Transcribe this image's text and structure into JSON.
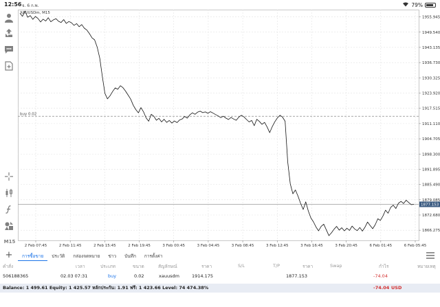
{
  "status": {
    "time": "12:56",
    "date": "จ. 6 ก.พ.",
    "battery": "79%",
    "battery_level": 0.79
  },
  "toolbar": {
    "items": [
      "person-icon",
      "trade-icon",
      "chat-icon",
      "new-doc-icon",
      "crosshair-icon",
      "candles-icon",
      "indicator-icon",
      "objects-icon"
    ],
    "timeframe": "M15"
  },
  "chart": {
    "symbol": "XAUUSDm, M15",
    "buy_label": "buy 0.02",
    "buy_level": 1914.175,
    "current_price": "1877.153",
    "current_level": 1877.153,
    "ylim": [
      1862.0,
      1959.0
    ],
    "price_ticks": [
      "1955.945",
      "1949.540",
      "1943.135",
      "1936.730",
      "1930.325",
      "1923.920",
      "1917.515",
      "1911.110",
      "1904.705",
      "1898.300",
      "1891.895",
      "1885.490",
      "1879.085",
      "1872.680",
      "1866.275"
    ],
    "price_tick_values": [
      1955.945,
      1949.54,
      1943.135,
      1936.73,
      1930.325,
      1923.92,
      1917.515,
      1911.11,
      1904.705,
      1898.3,
      1891.895,
      1885.49,
      1879.085,
      1872.68,
      1866.275
    ],
    "time_ticks": [
      "2 Feb 07:45",
      "2 Feb 11:45",
      "2 Feb 15:45",
      "2 Feb 19:45",
      "3 Feb 00:45",
      "3 Feb 04:45",
      "3 Feb 08:45",
      "3 Feb 12:45",
      "3 Feb 16:45",
      "3 Feb 20:45",
      "6 Feb 01:45",
      "6 Feb 05:45"
    ]
  },
  "chart_data": {
    "type": "line",
    "title": "XAUUSDm, M15",
    "xlabel": "",
    "ylabel": "",
    "ylim": [
      1862.0,
      1959.0
    ],
    "grid": true,
    "series": [
      {
        "values": [
          1957.5,
          1956.2,
          1958.4,
          1955.8,
          1956.5,
          1954.9,
          1956.1,
          1955.3,
          1953.8,
          1955.0,
          1954.2,
          1955.6,
          1953.9,
          1954.7,
          1955.2,
          1954.1,
          1953.6,
          1954.8,
          1953.2,
          1954.0,
          1953.5,
          1952.4,
          1953.1,
          1951.8,
          1952.7,
          1951.2,
          1950.4,
          1948.9,
          1947.1,
          1946.3,
          1943.2,
          1938.6,
          1931.0,
          1923.8,
          1921.5,
          1922.8,
          1924.6,
          1926.1,
          1925.5,
          1927.0,
          1926.2,
          1924.8,
          1923.1,
          1921.4,
          1918.8,
          1917.0,
          1915.6,
          1917.8,
          1916.0,
          1913.5,
          1912.1,
          1915.0,
          1914.2,
          1912.5,
          1913.3,
          1911.8,
          1912.9,
          1911.6,
          1912.4,
          1911.3,
          1912.2,
          1911.5,
          1912.6,
          1913.0,
          1914.1,
          1913.4,
          1914.8,
          1915.6,
          1915.0,
          1915.9,
          1916.3,
          1915.7,
          1916.0,
          1915.4,
          1916.1,
          1915.5,
          1914.9,
          1914.3,
          1913.6,
          1914.2,
          1913.4,
          1912.8,
          1913.7,
          1913.0,
          1912.5,
          1913.8,
          1914.6,
          1913.9,
          1912.8,
          1911.8,
          1912.4,
          1910.2,
          1912.9,
          1912.0,
          1910.8,
          1911.6,
          1909.7,
          1907.3,
          1909.8,
          1911.9,
          1913.5,
          1914.6,
          1913.8,
          1912.1,
          1895.0,
          1885.8,
          1881.6,
          1883.2,
          1880.6,
          1877.6,
          1875.0,
          1878.2,
          1874.3,
          1871.4,
          1869.8,
          1867.6,
          1866.0,
          1867.9,
          1868.8,
          1866.4,
          1864.0,
          1865.2,
          1866.7,
          1867.9,
          1866.3,
          1867.3,
          1866.0,
          1867.1,
          1866.2,
          1868.0,
          1866.8,
          1866.1,
          1867.4,
          1865.9,
          1867.5,
          1869.7,
          1868.3,
          1866.9,
          1868.6,
          1871.1,
          1870.4,
          1872.3,
          1874.7,
          1873.4,
          1875.9,
          1876.8,
          1875.4,
          1877.6,
          1878.4,
          1877.5,
          1878.9,
          1877.9,
          1877.0,
          1877.153
        ]
      }
    ]
  },
  "terminal": {
    "tabs": [
      {
        "label": "การซื้อขาย",
        "active": true
      },
      {
        "label": "ประวัติ",
        "active": false
      },
      {
        "label": "กล่องจดหมาย",
        "active": false
      },
      {
        "label": "ข่าว",
        "active": false
      },
      {
        "label": "บันทึก",
        "active": false
      },
      {
        "label": "การตั้งค่า",
        "active": false
      }
    ],
    "headers": [
      "คำสั่ง",
      "เวลา",
      "ประเภท",
      "ขนาด",
      "สัญลักษณ์",
      "ราคา",
      "S/L",
      "T/P",
      "ราคา",
      "Swap",
      "กำไร",
      "หมายเหตุ"
    ],
    "row": {
      "order": "506188365",
      "time": "02.03 07:31",
      "type": "buy",
      "size": "0.02",
      "symbol": "xauusdm",
      "price": "1914.175",
      "sl": "",
      "tp": "",
      "current": "1877.153",
      "swap": "",
      "profit": "-74.04",
      "comment": ""
    },
    "balance": "Balance: 1 499.61 Equity: 1 425.57 หลักประกัน: 1.91 ฟรี: 1 423.66 Level: 74 474.38%",
    "total_profit": "-74.04",
    "currency": "USD"
  }
}
